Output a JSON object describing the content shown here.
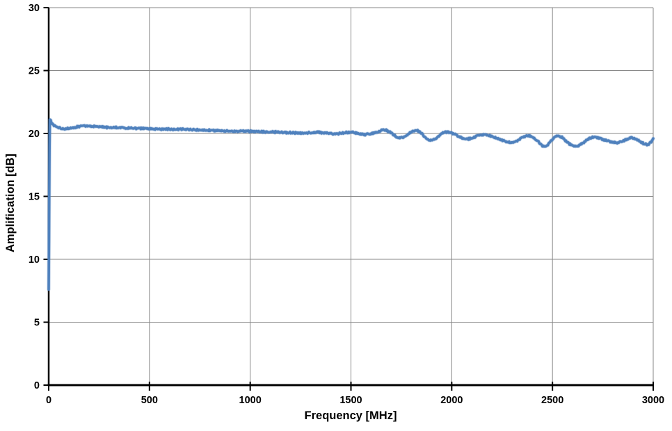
{
  "chart_data": {
    "type": "line",
    "title": "",
    "xlabel": "Frequency [MHz]",
    "ylabel": "Amplification [dB]",
    "xlim": [
      0,
      3000
    ],
    "ylim": [
      0,
      30
    ],
    "x_ticks": [
      0,
      500,
      1000,
      1500,
      2000,
      2500,
      3000
    ],
    "y_ticks": [
      0,
      5,
      10,
      15,
      20,
      25,
      30
    ],
    "grid": true,
    "legend": "none",
    "series": [
      {
        "name": "Amplification",
        "color": "#4f81bd",
        "points": [
          [
            0,
            7.6
          ],
          [
            2,
            13.5
          ],
          [
            4,
            19.0
          ],
          [
            6,
            21.1
          ],
          [
            10,
            21.0
          ],
          [
            15,
            20.85
          ],
          [
            20,
            20.72
          ],
          [
            30,
            20.6
          ],
          [
            40,
            20.52
          ],
          [
            55,
            20.44
          ],
          [
            70,
            20.4
          ],
          [
            85,
            20.38
          ],
          [
            100,
            20.42
          ],
          [
            115,
            20.46
          ],
          [
            130,
            20.5
          ],
          [
            145,
            20.54
          ],
          [
            160,
            20.58
          ],
          [
            175,
            20.6
          ],
          [
            190,
            20.6
          ],
          [
            205,
            20.58
          ],
          [
            220,
            20.56
          ],
          [
            240,
            20.55
          ],
          [
            260,
            20.52
          ],
          [
            280,
            20.5
          ],
          [
            300,
            20.48
          ],
          [
            325,
            20.47
          ],
          [
            350,
            20.46
          ],
          [
            375,
            20.44
          ],
          [
            400,
            20.43
          ],
          [
            425,
            20.41
          ],
          [
            450,
            20.4
          ],
          [
            475,
            20.39
          ],
          [
            500,
            20.38
          ],
          [
            525,
            20.37
          ],
          [
            550,
            20.36
          ],
          [
            575,
            20.35
          ],
          [
            600,
            20.35
          ],
          [
            625,
            20.34
          ],
          [
            650,
            20.33
          ],
          [
            675,
            20.31
          ],
          [
            700,
            20.3
          ],
          [
            725,
            20.29
          ],
          [
            750,
            20.27
          ],
          [
            775,
            20.26
          ],
          [
            800,
            20.25
          ],
          [
            825,
            20.23
          ],
          [
            850,
            20.22
          ],
          [
            875,
            20.21
          ],
          [
            900,
            20.2
          ],
          [
            925,
            20.19
          ],
          [
            950,
            20.18
          ],
          [
            975,
            20.17
          ],
          [
            1000,
            20.18
          ],
          [
            1030,
            20.16
          ],
          [
            1060,
            20.14
          ],
          [
            1090,
            20.12
          ],
          [
            1120,
            20.12
          ],
          [
            1150,
            20.11
          ],
          [
            1180,
            20.08
          ],
          [
            1210,
            20.06
          ],
          [
            1240,
            20.03
          ],
          [
            1270,
            20.02
          ],
          [
            1300,
            20.05
          ],
          [
            1330,
            20.1
          ],
          [
            1360,
            20.07
          ],
          [
            1390,
            20.0
          ],
          [
            1420,
            19.96
          ],
          [
            1450,
            20.0
          ],
          [
            1480,
            20.08
          ],
          [
            1510,
            20.1
          ],
          [
            1540,
            19.98
          ],
          [
            1570,
            19.92
          ],
          [
            1600,
            19.98
          ],
          [
            1630,
            20.12
          ],
          [
            1655,
            20.28
          ],
          [
            1675,
            20.25
          ],
          [
            1700,
            20.04
          ],
          [
            1720,
            19.78
          ],
          [
            1740,
            19.64
          ],
          [
            1760,
            19.7
          ],
          [
            1780,
            19.9
          ],
          [
            1805,
            20.18
          ],
          [
            1825,
            20.26
          ],
          [
            1845,
            20.08
          ],
          [
            1865,
            19.76
          ],
          [
            1885,
            19.5
          ],
          [
            1905,
            19.46
          ],
          [
            1925,
            19.66
          ],
          [
            1945,
            19.92
          ],
          [
            1965,
            20.12
          ],
          [
            1985,
            20.12
          ],
          [
            2005,
            20.02
          ],
          [
            2030,
            19.8
          ],
          [
            2055,
            19.6
          ],
          [
            2080,
            19.55
          ],
          [
            2105,
            19.66
          ],
          [
            2130,
            19.85
          ],
          [
            2155,
            19.92
          ],
          [
            2180,
            19.85
          ],
          [
            2210,
            19.7
          ],
          [
            2240,
            19.52
          ],
          [
            2270,
            19.36
          ],
          [
            2300,
            19.26
          ],
          [
            2325,
            19.44
          ],
          [
            2350,
            19.68
          ],
          [
            2375,
            19.85
          ],
          [
            2400,
            19.72
          ],
          [
            2425,
            19.4
          ],
          [
            2450,
            19.02
          ],
          [
            2468,
            18.95
          ],
          [
            2490,
            19.35
          ],
          [
            2510,
            19.72
          ],
          [
            2530,
            19.82
          ],
          [
            2550,
            19.66
          ],
          [
            2570,
            19.35
          ],
          [
            2590,
            19.1
          ],
          [
            2610,
            18.96
          ],
          [
            2630,
            19.02
          ],
          [
            2650,
            19.22
          ],
          [
            2670,
            19.5
          ],
          [
            2690,
            19.66
          ],
          [
            2710,
            19.72
          ],
          [
            2740,
            19.6
          ],
          [
            2765,
            19.45
          ],
          [
            2790,
            19.35
          ],
          [
            2815,
            19.26
          ],
          [
            2840,
            19.32
          ],
          [
            2865,
            19.5
          ],
          [
            2890,
            19.68
          ],
          [
            2915,
            19.58
          ],
          [
            2940,
            19.32
          ],
          [
            2960,
            19.14
          ],
          [
            2975,
            19.1
          ],
          [
            2990,
            19.35
          ],
          [
            3000,
            19.6
          ]
        ]
      }
    ]
  },
  "style": {
    "background": "#ffffff",
    "grid_color": "#878787",
    "axis_color": "#000000",
    "text_color": "#000000",
    "series_line_width": 3.6,
    "noise_db": 0.05
  }
}
